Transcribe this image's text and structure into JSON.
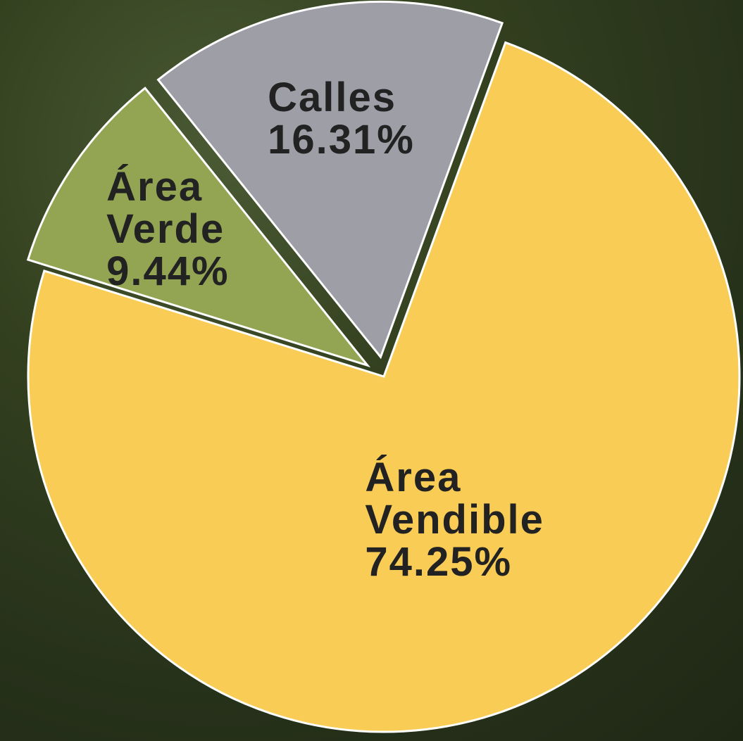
{
  "chart_data": {
    "type": "pie",
    "categories": [
      "Área Vendible",
      "Área Verde",
      "Calles"
    ],
    "values": [
      74.25,
      9.44,
      16.31
    ],
    "value_labels": [
      "74.25%",
      "9.44%",
      "16.31%"
    ],
    "colors": [
      "#f9cd55",
      "#93a553",
      "#9e9ea7"
    ]
  }
}
